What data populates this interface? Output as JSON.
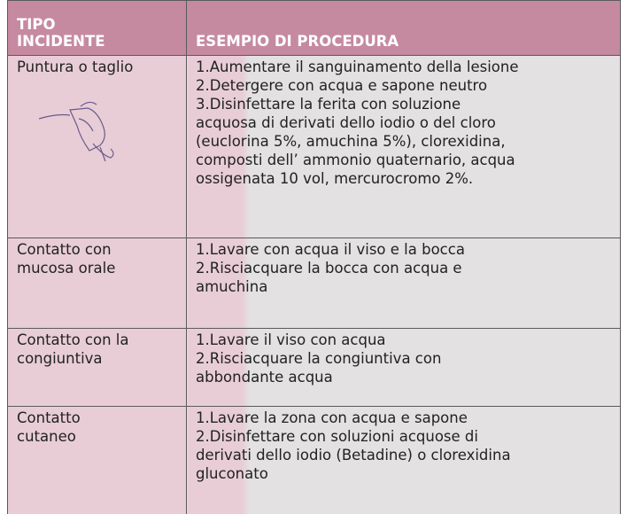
{
  "header": {
    "columns": [
      [
        "TIPO",
        "INCIDENTE"
      ],
      [
        "ESEMPIO DI PROCEDURA"
      ]
    ]
  },
  "table": {
    "rows": [
      [
        [
          "Puntura o taglio"
        ],
        [
          "1.Aumentare il sanguinamento della lesione",
          "2.Detergere con acqua e sapone neutro",
          "3.Disinfettare la ferita con soluzione",
          "acquosa di derivati dello iodio o del cloro",
          "(euclorina 5%, amuchina 5%), clorexidina,",
          "composti dell’ ammonio quaternario, acqua",
          "ossigenata 10 vol, mercurocromo 2%."
        ]
      ],
      [
        [
          "Contatto con",
          "mucosa orale"
        ],
        [
          "1.Lavare con acqua il viso e la bocca",
          "2.Risciacquare la bocca con acqua e",
          "amuchina"
        ]
      ],
      [
        [
          "Contatto con la",
          "congiuntiva"
        ],
        [
          "1.Lavare il viso con acqua",
          "2.Risciacquare la congiuntiva con",
          "abbondante acqua"
        ]
      ],
      [
        [
          "Contatto",
          "cutaneo"
        ],
        [
          "1.Lavare la zona con acqua e sapone",
          "2.Disinfettare con soluzioni acquose di",
          "derivati dello iodio (Betadine) o clorexidina",
          "gluconato"
        ]
      ]
    ]
  }
}
